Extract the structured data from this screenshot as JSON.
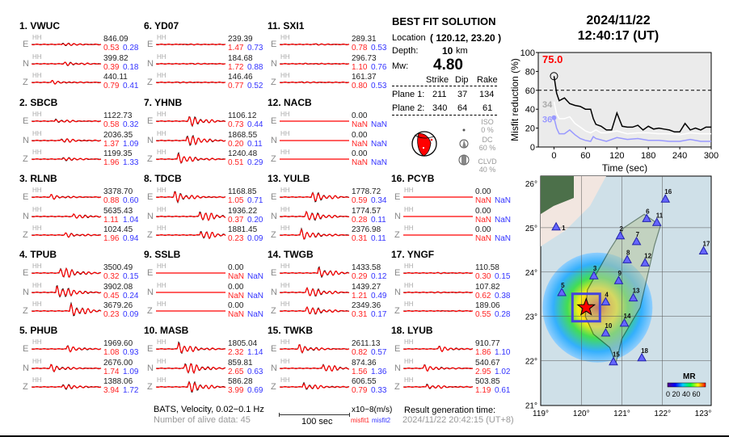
{
  "stations": [
    {
      "label": "1.  VWUC",
      "comps": [
        {
          "c": "E",
          "hh": "HH",
          "amp": "846.09",
          "m1": "0.53",
          "m2": "0.28"
        },
        {
          "c": "N",
          "hh": "HH",
          "amp": "399.82",
          "m1": "0.39",
          "m2": "0.18"
        },
        {
          "c": "Z",
          "hh": "HH",
          "amp": "440.11",
          "m1": "0.79",
          "m2": "0.41"
        }
      ]
    },
    {
      "label": "2.  SBCB",
      "comps": [
        {
          "c": "E",
          "hh": "HH",
          "amp": "1122.73",
          "m1": "0.58",
          "m2": "0.32"
        },
        {
          "c": "N",
          "hh": "HH",
          "amp": "2036.35",
          "m1": "1.37",
          "m2": "1.09"
        },
        {
          "c": "Z",
          "hh": "HH",
          "amp": "1199.35",
          "m1": "1.96",
          "m2": "1.33"
        }
      ]
    },
    {
      "label": "3.  RLNB",
      "comps": [
        {
          "c": "E",
          "hh": "HH",
          "amp": "3378.70",
          "m1": "0.88",
          "m2": "0.60"
        },
        {
          "c": "N",
          "hh": "HH",
          "amp": "5635.43",
          "m1": "1.11",
          "m2": "1.04"
        },
        {
          "c": "Z",
          "hh": "HH",
          "amp": "1024.45",
          "m1": "1.96",
          "m2": "0.94"
        }
      ]
    },
    {
      "label": "4.  TPUB",
      "comps": [
        {
          "c": "E",
          "hh": "HH",
          "amp": "3500.49",
          "m1": "0.32",
          "m2": "0.15"
        },
        {
          "c": "N",
          "hh": "HH",
          "amp": "3902.08",
          "m1": "0.45",
          "m2": "0.24"
        },
        {
          "c": "Z",
          "hh": "HH",
          "amp": "3679.26",
          "m1": "0.23",
          "m2": "0.09"
        }
      ]
    },
    {
      "label": "5.  PHUB",
      "comps": [
        {
          "c": "E",
          "hh": "HH",
          "amp": "1969.60",
          "m1": "1.08",
          "m2": "0.93"
        },
        {
          "c": "N",
          "hh": "HH",
          "amp": "2676.00",
          "m1": "1.74",
          "m2": "1.09"
        },
        {
          "c": "Z",
          "hh": "HH",
          "amp": "1388.06",
          "m1": "3.94",
          "m2": "1.72"
        }
      ]
    },
    {
      "label": "6.  YD07",
      "comps": [
        {
          "c": "E",
          "hh": "HH",
          "amp": "239.39",
          "m1": "1.47",
          "m2": "0.73"
        },
        {
          "c": "N",
          "hh": "HH",
          "amp": "184.68",
          "m1": "1.72",
          "m2": "0.88"
        },
        {
          "c": "Z",
          "hh": "HH",
          "amp": "146.46",
          "m1": "0.77",
          "m2": "0.52"
        }
      ]
    },
    {
      "label": "7.  YHNB",
      "comps": [
        {
          "c": "E",
          "hh": "HH",
          "amp": "1106.12",
          "m1": "0.73",
          "m2": "0.44"
        },
        {
          "c": "N",
          "hh": "HH",
          "amp": "1868.55",
          "m1": "0.20",
          "m2": "0.11"
        },
        {
          "c": "Z",
          "hh": "HH",
          "amp": "1240.48",
          "m1": "0.51",
          "m2": "0.29"
        }
      ]
    },
    {
      "label": "8.  TDCB",
      "comps": [
        {
          "c": "E",
          "hh": "HH",
          "amp": "1168.85",
          "m1": "1.05",
          "m2": "0.71"
        },
        {
          "c": "N",
          "hh": "HH",
          "amp": "1936.22",
          "m1": "0.37",
          "m2": "0.20"
        },
        {
          "c": "Z",
          "hh": "HH",
          "amp": "1881.45",
          "m1": "0.23",
          "m2": "0.09"
        }
      ]
    },
    {
      "label": "9.  SSLB",
      "comps": [
        {
          "c": "E",
          "hh": "HH",
          "amp": "0.00",
          "m1": "NaN",
          "m2": "NaN"
        },
        {
          "c": "N",
          "hh": "HH",
          "amp": "0.00",
          "m1": "NaN",
          "m2": "NaN"
        },
        {
          "c": "Z",
          "hh": "HH",
          "amp": "0.00",
          "m1": "NaN",
          "m2": "NaN"
        }
      ]
    },
    {
      "label": "10. MASB",
      "comps": [
        {
          "c": "E",
          "hh": "HH",
          "amp": "1805.04",
          "m1": "2.32",
          "m2": "1.14"
        },
        {
          "c": "N",
          "hh": "HH",
          "amp": "859.81",
          "m1": "2.65",
          "m2": "0.63"
        },
        {
          "c": "Z",
          "hh": "HH",
          "amp": "586.28",
          "m1": "3.99",
          "m2": "0.69"
        }
      ]
    },
    {
      "label": "11. SXI1",
      "comps": [
        {
          "c": "E",
          "hh": "HH",
          "amp": "289.31",
          "m1": "0.78",
          "m2": "0.53"
        },
        {
          "c": "N",
          "hh": "HH",
          "amp": "296.73",
          "m1": "1.10",
          "m2": "0.76"
        },
        {
          "c": "Z",
          "hh": "HH",
          "amp": "161.37",
          "m1": "0.80",
          "m2": "0.53"
        }
      ]
    },
    {
      "label": "12. NACB",
      "comps": [
        {
          "c": "E",
          "hh": "HH",
          "amp": "0.00",
          "m1": "NaN",
          "m2": "NaN"
        },
        {
          "c": "N",
          "hh": "HH",
          "amp": "0.00",
          "m1": "NaN",
          "m2": "NaN"
        },
        {
          "c": "Z",
          "hh": "HH",
          "amp": "0.00",
          "m1": "NaN",
          "m2": "NaN"
        }
      ]
    },
    {
      "label": "13. YULB",
      "comps": [
        {
          "c": "E",
          "hh": "HH",
          "amp": "1778.72",
          "m1": "0.59",
          "m2": "0.34"
        },
        {
          "c": "N",
          "hh": "HH",
          "amp": "1774.57",
          "m1": "0.28",
          "m2": "0.11"
        },
        {
          "c": "Z",
          "hh": "HH",
          "amp": "2376.98",
          "m1": "0.31",
          "m2": "0.11"
        }
      ]
    },
    {
      "label": "14. TWGB",
      "comps": [
        {
          "c": "E",
          "hh": "HH",
          "amp": "1433.58",
          "m1": "0.29",
          "m2": "0.12"
        },
        {
          "c": "N",
          "hh": "HH",
          "amp": "1439.27",
          "m1": "1.21",
          "m2": "0.49"
        },
        {
          "c": "Z",
          "hh": "HH",
          "amp": "2349.36",
          "m1": "0.31",
          "m2": "0.17"
        }
      ]
    },
    {
      "label": "15. TWKB",
      "comps": [
        {
          "c": "E",
          "hh": "HH",
          "amp": "2611.13",
          "m1": "0.82",
          "m2": "0.57"
        },
        {
          "c": "N",
          "hh": "HH",
          "amp": "874.36",
          "m1": "1.56",
          "m2": "1.36"
        },
        {
          "c": "Z",
          "hh": "HH",
          "amp": "606.55",
          "m1": "0.79",
          "m2": "0.33"
        }
      ]
    },
    {
      "label": "16. PCYB",
      "comps": [
        {
          "c": "E",
          "hh": "HH",
          "amp": "0.00",
          "m1": "NaN",
          "m2": "NaN"
        },
        {
          "c": "N",
          "hh": "HH",
          "amp": "0.00",
          "m1": "NaN",
          "m2": "NaN"
        },
        {
          "c": "Z",
          "hh": "HH",
          "amp": "0.00",
          "m1": "NaN",
          "m2": "NaN"
        }
      ]
    },
    {
      "label": "17. YNGF",
      "comps": [
        {
          "c": "E",
          "hh": "HH",
          "amp": "110.58",
          "m1": "0.30",
          "m2": "0.15"
        },
        {
          "c": "N",
          "hh": "HH",
          "amp": "107.82",
          "m1": "0.62",
          "m2": "0.38"
        },
        {
          "c": "Z",
          "hh": "HH",
          "amp": "189.06",
          "m1": "0.55",
          "m2": "0.28"
        }
      ]
    },
    {
      "label": "18. LYUB",
      "comps": [
        {
          "c": "E",
          "hh": "HH",
          "amp": "910.77",
          "m1": "1.86",
          "m2": "1.10"
        },
        {
          "c": "N",
          "hh": "HH",
          "amp": "540.67",
          "m1": "2.95",
          "m2": "1.02"
        },
        {
          "c": "Z",
          "hh": "HH",
          "amp": "503.85",
          "m1": "1.19",
          "m2": "0.61"
        }
      ]
    }
  ],
  "footer": {
    "filter": "BATS, Velocity, 0.02−0.1 Hz",
    "alive": "Number of alive data: 45",
    "scale": "100 sec",
    "units": "x10−8(m/s)",
    "misfit1": "misfit1",
    "misfit2": "misfit2",
    "gen_label": "Result generation time:",
    "gen_time": "2024/11/22 20:42:15 (UT+8)"
  },
  "solution": {
    "title": "BEST FIT SOLUTION",
    "location_label": "Location",
    "location": "( 120.12,  23.20 )",
    "depth_label": "Depth:",
    "depth": "10",
    "depth_unit": "km",
    "mw_label": "Mw:",
    "mw": "4.80",
    "headers": [
      "Strike",
      "Dip",
      "Rake"
    ],
    "planes": [
      {
        "label": "Plane 1:",
        "vals": [
          "211",
          "37",
          "134"
        ]
      },
      {
        "label": "Plane 2:",
        "vals": [
          "340",
          "64",
          "61"
        ]
      }
    ],
    "iso": {
      "label": "ISO",
      "value": "0 %"
    },
    "dc": {
      "label": "DC",
      "value": "60 %"
    },
    "clvd": {
      "label": "CLVD",
      "value": "40 %"
    }
  },
  "event": {
    "date": "2024/11/22",
    "time": "12:40:17  (UT)"
  },
  "chart_data": {
    "type": "line",
    "xlabel": "Time (sec)",
    "ylabel": "Misfit reduction (%)",
    "xlim": [
      -30,
      300
    ],
    "ylim": [
      0,
      100
    ],
    "xticks": [
      0,
      60,
      120,
      180,
      240,
      300
    ],
    "yticks": [
      0,
      20,
      40,
      60,
      80,
      100
    ],
    "threshold": 60,
    "annotations": {
      "best": "75.0",
      "white_start": "34",
      "blue_start": "36"
    },
    "series": [
      {
        "name": "black",
        "color": "#000000",
        "x": [
          0,
          5,
          10,
          20,
          30,
          40,
          50,
          60,
          70,
          75,
          80,
          90,
          100,
          110,
          120,
          130,
          140,
          150,
          160,
          170,
          180,
          190,
          200,
          210,
          220,
          230,
          240,
          250,
          260,
          270,
          280,
          290,
          300
        ],
        "y": [
          75,
          57,
          49,
          52,
          46,
          44,
          43,
          40,
          40,
          30,
          24,
          22,
          18,
          18,
          36,
          22,
          21,
          21,
          23,
          18,
          22,
          19,
          20,
          19,
          18,
          16,
          16,
          25,
          18,
          20,
          18,
          21,
          21
        ]
      },
      {
        "name": "white",
        "color": "#ffffff",
        "x": [
          0,
          5,
          10,
          20,
          30,
          40,
          50,
          60,
          70,
          80,
          90,
          100,
          120,
          140,
          160,
          180,
          200,
          220,
          240,
          260,
          280,
          300
        ],
        "y": [
          48,
          35,
          30,
          30,
          32,
          25,
          21,
          17,
          15,
          18,
          15,
          15,
          17,
          14,
          15,
          15,
          14,
          14,
          13,
          15,
          14,
          14
        ]
      },
      {
        "name": "blue",
        "color": "#9999ff",
        "x": [
          0,
          5,
          10,
          20,
          30,
          40,
          50,
          60,
          70,
          75,
          80,
          100,
          120,
          140,
          160,
          180,
          200,
          220,
          240,
          260,
          280,
          300
        ],
        "y": [
          31,
          20,
          14,
          14,
          18,
          13,
          9,
          7,
          6,
          11,
          9,
          6,
          10,
          8,
          9,
          7,
          7,
          6,
          6,
          8,
          6,
          6
        ]
      }
    ]
  },
  "map": {
    "lon_ticks": [
      "119°",
      "120°",
      "121°",
      "122°",
      "123°"
    ],
    "lat_ticks": [
      "26°",
      "25°",
      "24°",
      "23°",
      "22°",
      "21°"
    ],
    "colorbar_title": "MR",
    "colorbar_ticks": "0 20 40 60",
    "epicenter": {
      "lon": 120.12,
      "lat": 23.2
    },
    "stations": [
      {
        "id": "1",
        "lon": 119.38,
        "lat": 25.02
      },
      {
        "id": "2",
        "lon": 120.96,
        "lat": 24.82
      },
      {
        "id": "3",
        "lon": 120.31,
        "lat": 23.92
      },
      {
        "id": "4",
        "lon": 120.6,
        "lat": 23.33
      },
      {
        "id": "5",
        "lon": 119.52,
        "lat": 23.54
      },
      {
        "id": "6",
        "lon": 121.61,
        "lat": 25.21
      },
      {
        "id": "7",
        "lon": 121.36,
        "lat": 24.69
      },
      {
        "id": "8",
        "lon": 121.13,
        "lat": 24.28
      },
      {
        "id": "9",
        "lon": 120.92,
        "lat": 23.81
      },
      {
        "id": "10",
        "lon": 120.6,
        "lat": 22.63
      },
      {
        "id": "11",
        "lon": 121.86,
        "lat": 25.12
      },
      {
        "id": "12",
        "lon": 121.57,
        "lat": 24.21
      },
      {
        "id": "13",
        "lon": 121.28,
        "lat": 23.42
      },
      {
        "id": "14",
        "lon": 121.06,
        "lat": 22.85
      },
      {
        "id": "15",
        "lon": 120.79,
        "lat": 21.98
      },
      {
        "id": "16",
        "lon": 122.07,
        "lat": 25.65
      },
      {
        "id": "17",
        "lon": 123.01,
        "lat": 24.48
      },
      {
        "id": "18",
        "lon": 121.49,
        "lat": 22.07
      }
    ]
  }
}
